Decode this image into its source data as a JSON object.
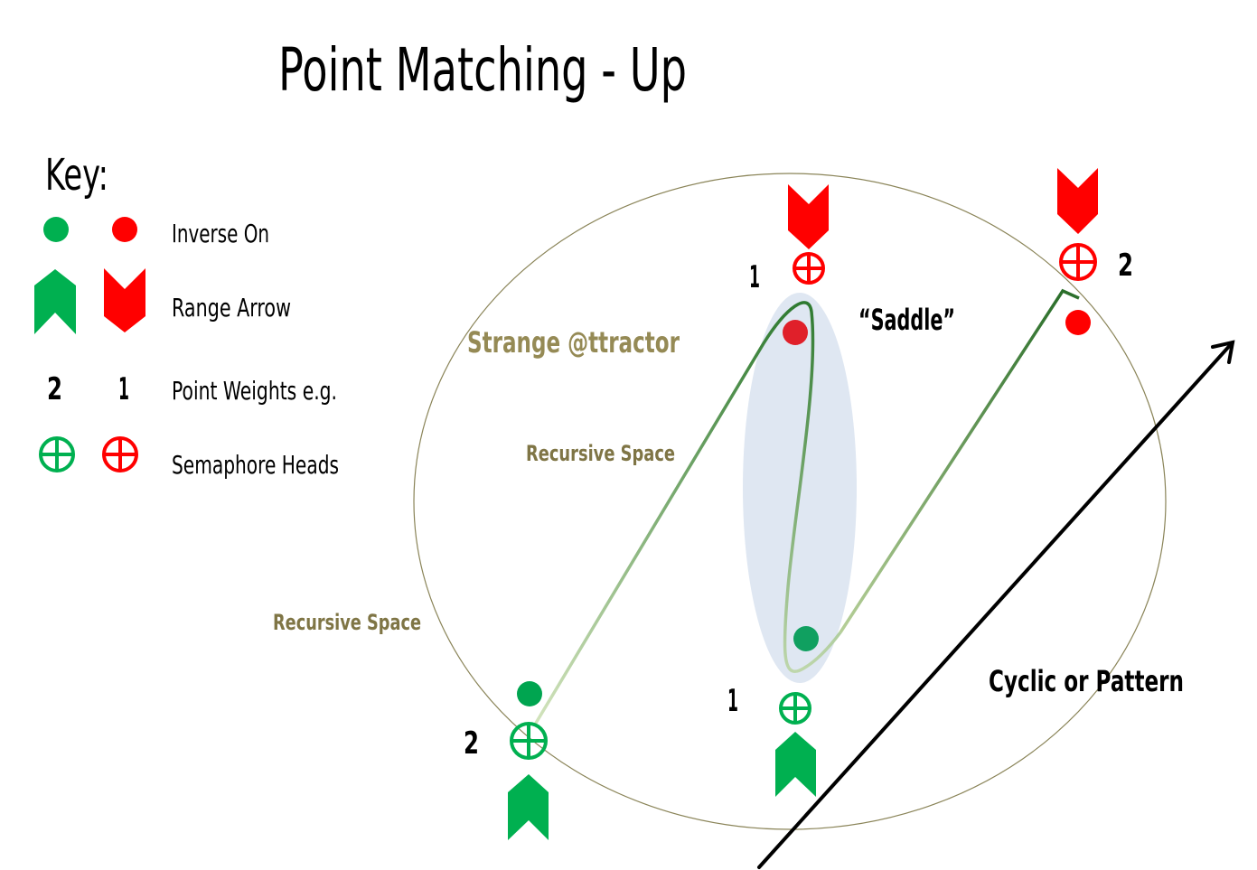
{
  "title": "Point Matching - Up",
  "key": {
    "heading": "Key:",
    "items": [
      {
        "label": "Inverse On",
        "icon": "inverse-dot"
      },
      {
        "label": "Range Arrow",
        "icon": "range-arrow"
      },
      {
        "label": "Point Weights e.g.",
        "icon": "weights",
        "examples": [
          "2",
          "1"
        ]
      },
      {
        "label": "Semaphore Heads",
        "icon": "semaphore-head"
      }
    ]
  },
  "diagram": {
    "attractor_label": "Strange @ttractor",
    "recursive_space_labels": [
      "Recursive Space",
      "Recursive Space"
    ],
    "saddle_label": "“Saddle”",
    "cyclic_label": "Cyclic or Pattern",
    "weights": {
      "top_middle": "1",
      "top_right": "2",
      "bottom_middle": "1",
      "bottom_left": "2"
    }
  },
  "colors": {
    "green": "#00b050",
    "red": "#ff0000",
    "attractor_text": "#958a55",
    "boundary": "#8a8458",
    "saddle_fill": "#dfe7f2"
  }
}
